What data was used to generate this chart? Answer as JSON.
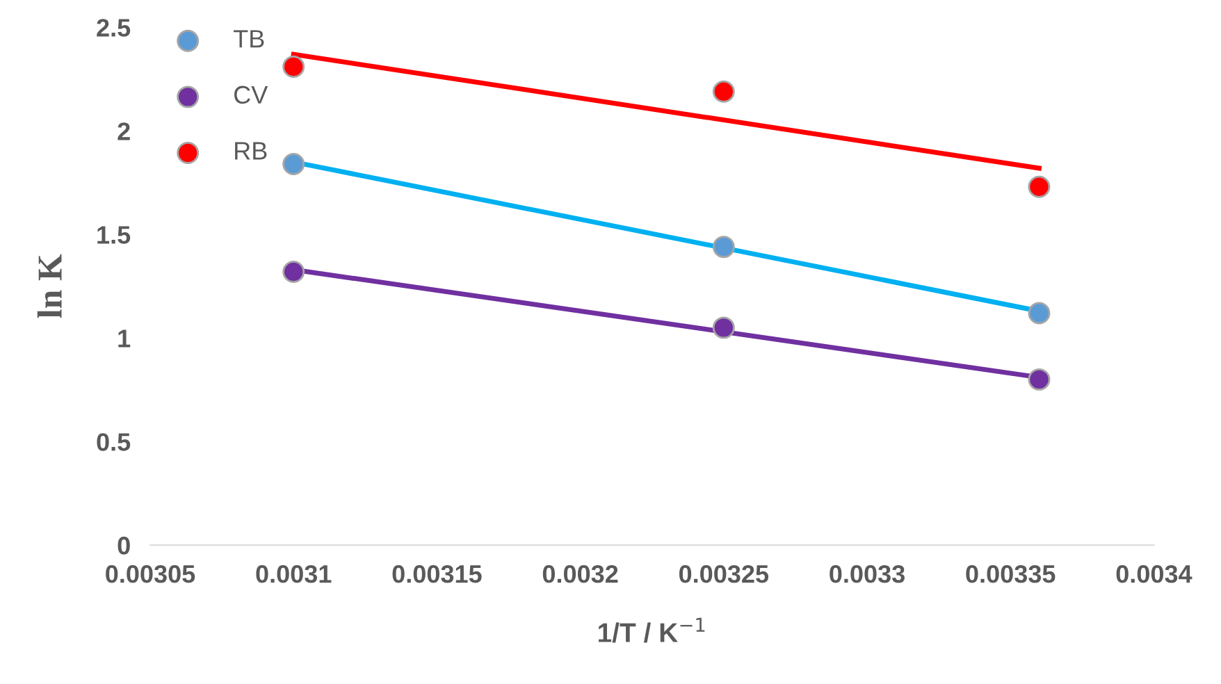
{
  "chart_data": {
    "type": "scatter",
    "xlabel": "1/T / K$^{−1}$",
    "ylabel": "ln K",
    "xlim": [
      0.00305,
      0.0034
    ],
    "xticks": [
      0.00305,
      0.0031,
      0.00315,
      0.0032,
      0.00325,
      0.0033,
      0.00335,
      0.0034
    ],
    "ylim": [
      0,
      2.5
    ],
    "yticks": [
      0,
      0.5,
      1,
      1.5,
      2,
      2.5
    ],
    "grid": false,
    "legend": "top left",
    "marker": "circle",
    "series": [
      {
        "name": "TB",
        "color": "#5b9bd5",
        "x": [
          0.0031,
          0.00325,
          0.00336
        ],
        "values": [
          1.84,
          1.44,
          1.12
        ]
      },
      {
        "name": "CV",
        "color": "#7030a0",
        "x": [
          0.0031,
          0.00325,
          0.00336
        ],
        "values": [
          1.32,
          1.05,
          0.8
        ]
      },
      {
        "name": "RB",
        "color": "#ff0000",
        "x": [
          0.0031,
          0.00325,
          0.00336
        ],
        "values": [
          2.31,
          2.19,
          1.73
        ]
      },
      {
        "type": "line",
        "marker": "none",
        "color": "#ff0000",
        "x": [
          0.0031,
          0.00336
        ],
        "values": [
          2.37,
          1.82
        ]
      },
      {
        "type": "line",
        "marker": "none",
        "color": "#00b0f0",
        "x": [
          0.0031,
          0.00336
        ],
        "values": [
          1.85,
          1.13
        ]
      },
      {
        "type": "line",
        "marker": "none",
        "color": "#7030a0",
        "x": [
          0.0031,
          0.00336
        ],
        "values": [
          1.33,
          0.81
        ]
      }
    ]
  }
}
